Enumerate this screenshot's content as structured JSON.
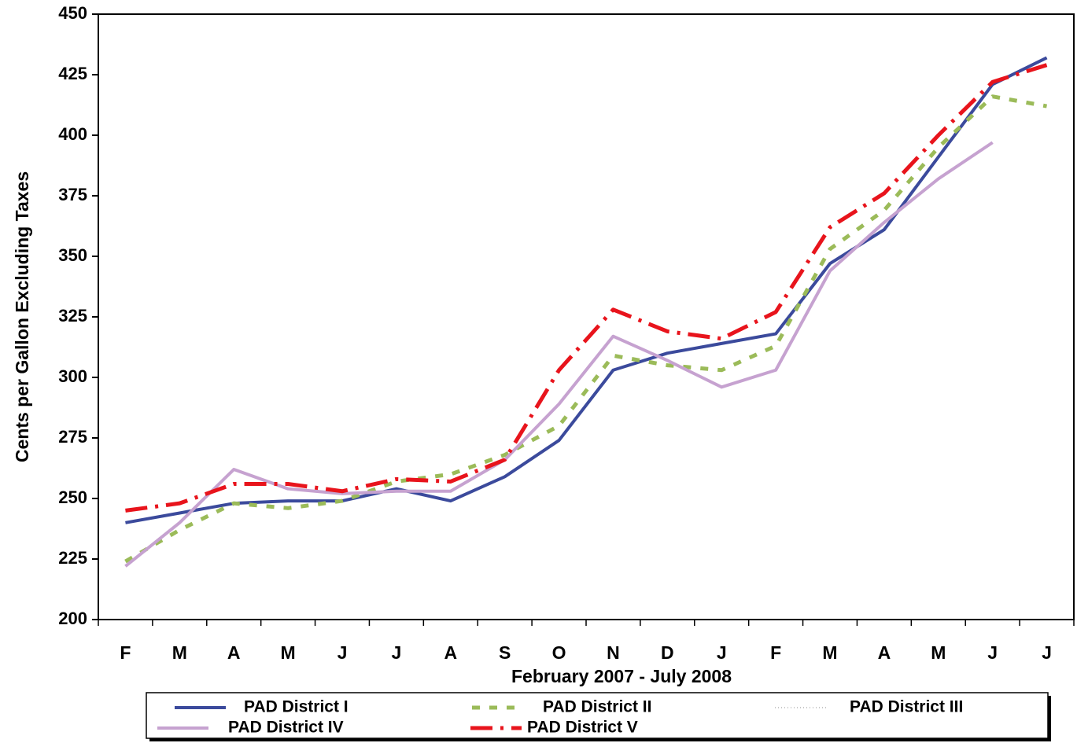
{
  "chart_data": {
    "type": "line",
    "y_label": "Cents per Gallon Excluding Taxes",
    "x_label": "February 2007 - July 2008",
    "categories": [
      "F",
      "M",
      "A",
      "M",
      "J",
      "J",
      "A",
      "S",
      "O",
      "N",
      "D",
      "J",
      "F",
      "M",
      "A",
      "M",
      "J",
      "J"
    ],
    "ylim": [
      200,
      450
    ],
    "yticks": [
      200,
      225,
      250,
      275,
      300,
      325,
      350,
      375,
      400,
      425,
      450
    ],
    "grid": false,
    "legend": "bottom",
    "series": [
      {
        "name": "PAD District I",
        "color": "#3b4a9c",
        "values": [
          240,
          244,
          248,
          249,
          249,
          254,
          249,
          259,
          274,
          303,
          310,
          314,
          318,
          347,
          361,
          391,
          421,
          432
        ]
      },
      {
        "name": "PAD District II",
        "color": "#9bbb59",
        "values": [
          224,
          237,
          248,
          246,
          249,
          257,
          260,
          268,
          280,
          309,
          305,
          303,
          313,
          353,
          369,
          395,
          416,
          412
        ]
      },
      {
        "name": "PAD District III",
        "color": "#8c8c8c",
        "values": [
          null,
          null,
          null,
          null,
          null,
          null,
          null,
          null,
          null,
          null,
          null,
          null,
          null,
          null,
          null,
          null,
          null,
          null
        ]
      },
      {
        "name": "PAD District IV",
        "color": "#c6a2d0",
        "values": [
          222,
          240,
          262,
          254,
          252,
          253,
          253,
          266,
          289,
          317,
          307,
          296,
          303,
          344,
          364,
          382,
          397,
          null
        ]
      },
      {
        "name": "PAD District V",
        "color": "#e8141c",
        "values": [
          245,
          248,
          256,
          256,
          253,
          258,
          257,
          266,
          303,
          328,
          319,
          316,
          327,
          362,
          376,
          400,
          422,
          429
        ]
      }
    ]
  }
}
